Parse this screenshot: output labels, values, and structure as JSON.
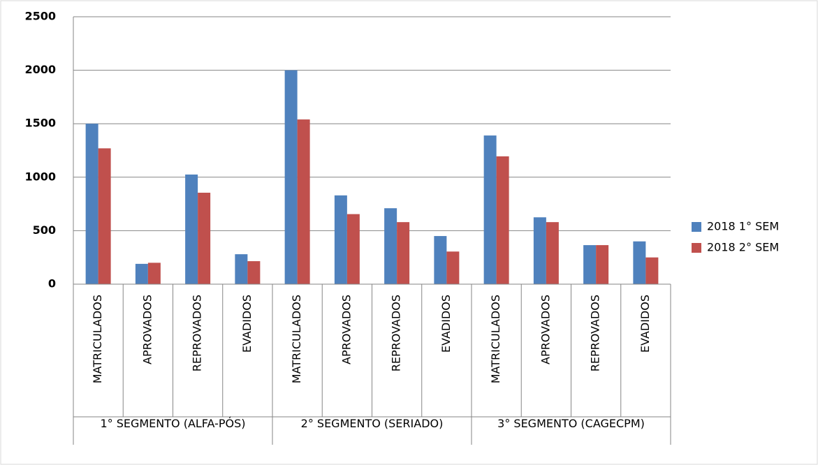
{
  "chart_data": {
    "type": "bar",
    "groups": [
      {
        "name": "1° SEGMENTO (ALFA-PÓS)",
        "categories": [
          "MATRICULADOS",
          "APROVADOS",
          "REPROVADOS",
          "EVADIDOS"
        ]
      },
      {
        "name": "2° SEGMENTO (SERIADO)",
        "categories": [
          "MATRICULADOS",
          "APROVADOS",
          "REPROVADOS",
          "EVADIDOS"
        ]
      },
      {
        "name": "3° SEGMENTO (CAGECPM)",
        "categories": [
          "MATRICULADOS",
          "APROVADOS",
          "REPROVADOS",
          "EVADIDOS"
        ]
      }
    ],
    "series": [
      {
        "name": "2018 1° SEM",
        "color": "#4f81bd",
        "values": [
          1500,
          190,
          1025,
          280,
          2000,
          830,
          710,
          450,
          1390,
          625,
          365,
          400
        ]
      },
      {
        "name": "2018 2° SEM",
        "color": "#c0504d",
        "values": [
          1270,
          200,
          855,
          215,
          1540,
          655,
          580,
          305,
          1195,
          580,
          365,
          250
        ]
      }
    ],
    "ylim": [
      0,
      2500
    ],
    "yticks": [
      0,
      500,
      1000,
      1500,
      2000,
      2500
    ],
    "grid": true,
    "legend": "right"
  }
}
